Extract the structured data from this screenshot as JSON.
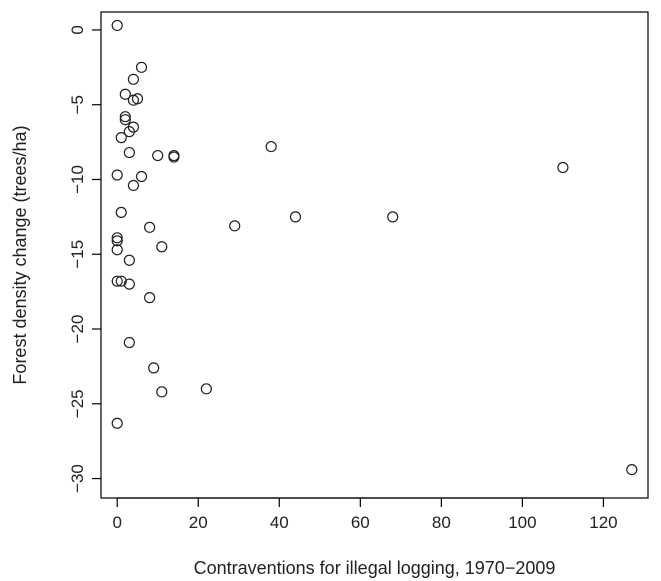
{
  "chart_data": {
    "type": "scatter",
    "title": "",
    "xlabel": "Contraventions for illegal logging, 1970−2009",
    "ylabel": "Forest density change (trees/ha)",
    "xlim": [
      -4,
      131
    ],
    "ylim": [
      -31.3,
      1.2
    ],
    "xticks": [
      0,
      20,
      40,
      60,
      80,
      100,
      120
    ],
    "yticks": [
      0,
      -5,
      -10,
      -15,
      -20,
      -25,
      -30
    ],
    "xtick_labels": [
      "0",
      "20",
      "40",
      "60",
      "80",
      "100",
      "120"
    ],
    "ytick_labels": [
      "0",
      "−5",
      "−10",
      "−15",
      "−20",
      "−25",
      "−30"
    ],
    "grid": false,
    "marker": "open-circle",
    "points": [
      {
        "x": 0,
        "y": 0.3
      },
      {
        "x": 6,
        "y": -2.5
      },
      {
        "x": 4,
        "y": -3.3
      },
      {
        "x": 2,
        "y": -4.3
      },
      {
        "x": 4,
        "y": -4.7
      },
      {
        "x": 5,
        "y": -4.6
      },
      {
        "x": 2,
        "y": -5.8
      },
      {
        "x": 2,
        "y": -6.0
      },
      {
        "x": 4,
        "y": -6.5
      },
      {
        "x": 3,
        "y": -6.8
      },
      {
        "x": 1,
        "y": -7.2
      },
      {
        "x": 3,
        "y": -8.2
      },
      {
        "x": 10,
        "y": -8.4
      },
      {
        "x": 14,
        "y": -8.4
      },
      {
        "x": 14,
        "y": -8.5
      },
      {
        "x": 38,
        "y": -7.8
      },
      {
        "x": 110,
        "y": -9.2
      },
      {
        "x": 0,
        "y": -9.7
      },
      {
        "x": 6,
        "y": -9.8
      },
      {
        "x": 4,
        "y": -10.4
      },
      {
        "x": 1,
        "y": -12.2
      },
      {
        "x": 44,
        "y": -12.5
      },
      {
        "x": 68,
        "y": -12.5
      },
      {
        "x": 29,
        "y": -13.1
      },
      {
        "x": 8,
        "y": -13.2
      },
      {
        "x": 0,
        "y": -13.9
      },
      {
        "x": 0,
        "y": -14.1
      },
      {
        "x": 11,
        "y": -14.5
      },
      {
        "x": 0,
        "y": -14.7
      },
      {
        "x": 3,
        "y": -15.4
      },
      {
        "x": 0,
        "y": -16.8
      },
      {
        "x": 1,
        "y": -16.8
      },
      {
        "x": 3,
        "y": -17.0
      },
      {
        "x": 8,
        "y": -17.9
      },
      {
        "x": 3,
        "y": -20.9
      },
      {
        "x": 9,
        "y": -22.6
      },
      {
        "x": 22,
        "y": -24.0
      },
      {
        "x": 11,
        "y": -24.2
      },
      {
        "x": 0,
        "y": -26.3
      },
      {
        "x": 127,
        "y": -29.4
      }
    ]
  }
}
